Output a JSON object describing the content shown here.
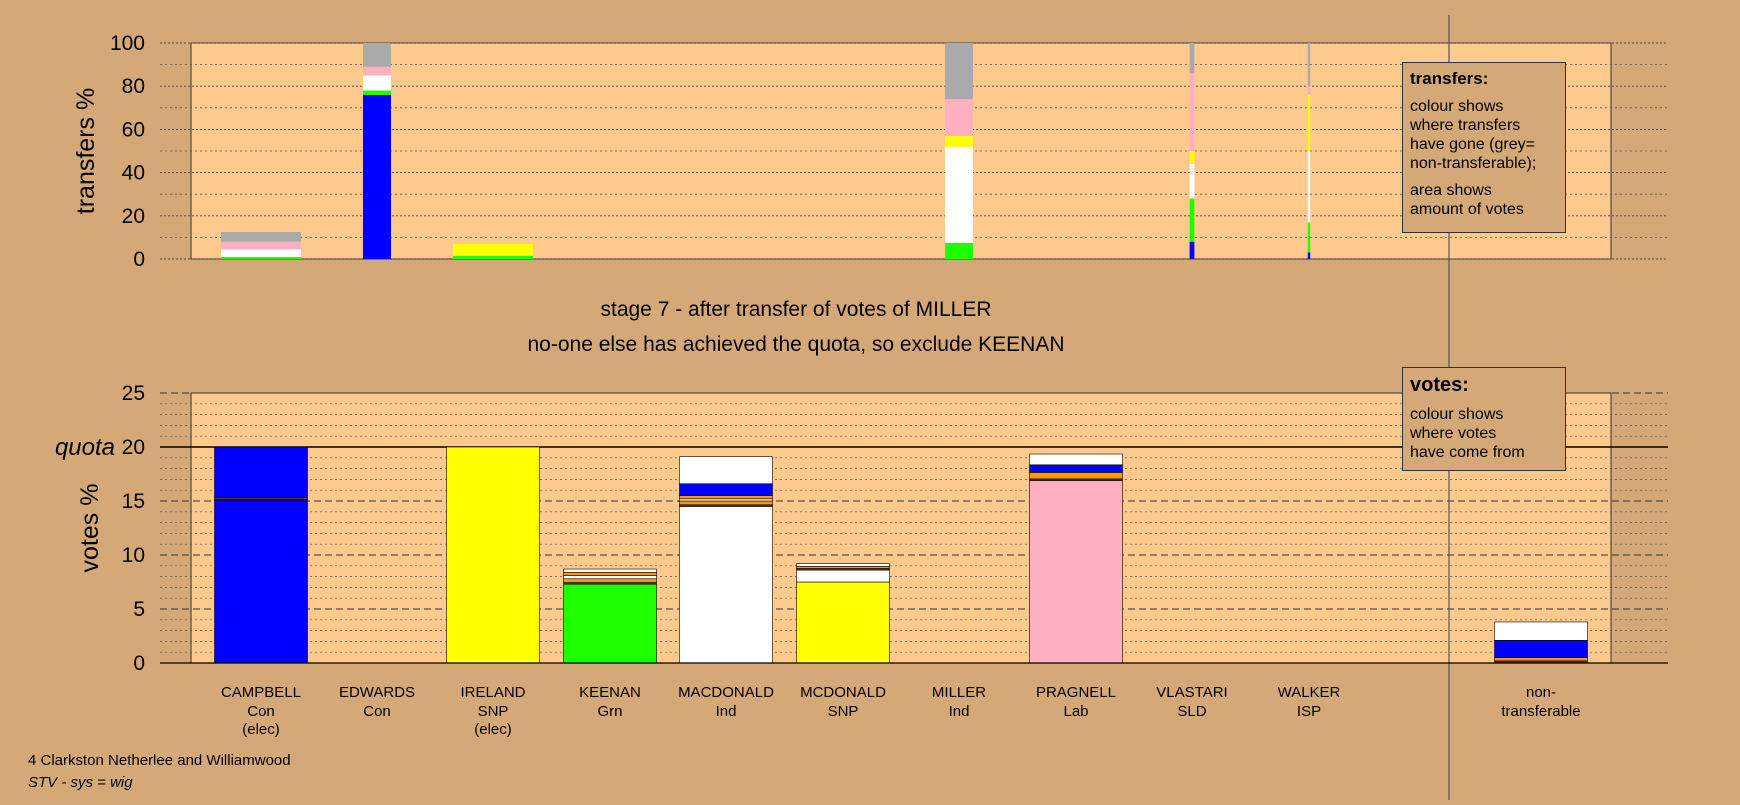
{
  "colors": {
    "page_bg": "#d4a877",
    "plot_bg": "#fec98d",
    "Con": "#0000ff",
    "SNP": "#ffff00",
    "Grn": "#1eff00",
    "Ind": "#ffffff",
    "Lab": "#ffb0c0",
    "SLD": "#ff9900",
    "ISP": "#7a2a00",
    "nontransferable": "#aaaaaa"
  },
  "headline": {
    "line1": "stage 7 - after transfer of votes of MILLER",
    "line2": "no-one else has achieved the quota, so exclude KEENAN"
  },
  "legend_transfers": {
    "title": "transfers:",
    "line1": "colour shows\nwhere transfers\nhave gone (grey=\nnon-transferable);",
    "line2": "area shows\namount of votes"
  },
  "legend_votes": {
    "title": "votes:",
    "line1": "colour shows\nwhere votes\nhave come from"
  },
  "footer": {
    "line1": "4 Clarkston Netherlee and Williamwood",
    "line2": "STV - sys = wig"
  },
  "chart_data": [
    {
      "type": "bar",
      "name": "transfers",
      "ylabel": "transfers %",
      "ylim": [
        0,
        100
      ],
      "yticks": [
        0,
        20,
        40,
        60,
        80,
        100
      ],
      "categories": [
        "CAMPBELL",
        "EDWARDS",
        "IRELAND",
        "KEENAN",
        "MACDONALD",
        "MCDONALD",
        "MILLER",
        "PRAGNELL",
        "VLASTARI",
        "WALKER"
      ],
      "bar_widths": [
        1.0,
        0.35,
        1.0,
        0,
        0,
        0,
        0.35,
        0,
        0.06,
        0.03
      ],
      "stacks": [
        [
          [
            "Grn",
            1
          ],
          [
            "Ind",
            3.5
          ],
          [
            "Lab",
            3.5
          ],
          [
            "nontransferable",
            4.5
          ]
        ],
        [
          [
            "Con",
            76
          ],
          [
            "Grn",
            2
          ],
          [
            "Ind",
            7
          ],
          [
            "Lab",
            4
          ],
          [
            "nontransferable",
            11
          ]
        ],
        [
          [
            "Grn",
            1.5
          ],
          [
            "SNP",
            5.5
          ]
        ],
        [],
        [],
        [],
        [
          [
            "Grn",
            7.5
          ],
          [
            "Ind",
            44.5
          ],
          [
            "SNP",
            5
          ],
          [
            "Lab",
            17
          ],
          [
            "nontransferable",
            26
          ]
        ],
        [],
        [
          [
            "Con",
            8
          ],
          [
            "Grn",
            20
          ],
          [
            "Ind",
            16
          ],
          [
            "SNP",
            6
          ],
          [
            "Lab",
            36
          ],
          [
            "nontransferable",
            14
          ]
        ],
        [
          [
            "Con",
            3
          ],
          [
            "Grn",
            14
          ],
          [
            "Ind",
            33
          ],
          [
            "SNP",
            26
          ],
          [
            "Lab",
            4
          ],
          [
            "nontransferable",
            20
          ]
        ]
      ]
    },
    {
      "type": "bar",
      "name": "votes",
      "ylabel": "votes %",
      "ylim": [
        0,
        25
      ],
      "yticks": [
        0,
        5,
        10,
        15,
        20,
        25
      ],
      "quota": 20,
      "quota_label": "quota",
      "categories": [
        {
          "name": "CAMPBELL",
          "party": "Con",
          "note": "(elec)"
        },
        {
          "name": "EDWARDS",
          "party": "Con",
          "note": ""
        },
        {
          "name": "IRELAND",
          "party": "SNP",
          "note": "(elec)"
        },
        {
          "name": "KEENAN",
          "party": "Grn",
          "note": ""
        },
        {
          "name": "MACDONALD",
          "party": "Ind",
          "note": ""
        },
        {
          "name": "MCDONALD",
          "party": "SNP",
          "note": ""
        },
        {
          "name": "MILLER",
          "party": "Ind",
          "note": ""
        },
        {
          "name": "PRAGNELL",
          "party": "Lab",
          "note": ""
        },
        {
          "name": "VLASTARI",
          "party": "SLD",
          "note": ""
        },
        {
          "name": "WALKER",
          "party": "ISP",
          "note": ""
        },
        {
          "name": "non-",
          "party": "transferable",
          "note": ""
        }
      ],
      "stacks": [
        [
          [
            "Con",
            15.1
          ],
          [
            "ISP",
            0.1
          ],
          [
            "SLD",
            0.1
          ],
          [
            "Con",
            4.7
          ]
        ],
        [],
        [
          [
            "SNP",
            20
          ]
        ],
        [
          [
            "Grn",
            7.3
          ],
          [
            "ISP",
            0.15
          ],
          [
            "SLD",
            0.35
          ],
          [
            "Ind",
            0.3
          ],
          [
            "SLD",
            0.3
          ],
          [
            "Ind",
            0.3
          ]
        ],
        [
          [
            "Ind",
            14.5
          ],
          [
            "ISP",
            0.15
          ],
          [
            "SLD",
            0.35
          ],
          [
            "Ind",
            0.2
          ],
          [
            "SLD",
            0.3
          ],
          [
            "Con",
            1.1
          ],
          [
            "Ind",
            2.5
          ]
        ],
        [],
        [],
        [
          [
            "Lab",
            16.9
          ],
          [
            "ISP",
            0.15
          ],
          [
            "SLD",
            0.6
          ],
          [
            "Con",
            0.7
          ],
          [
            "Ind",
            1.0
          ]
        ],
        [],
        [],
        [
          [
            "ISP",
            0.2
          ],
          [
            "SLD",
            0.3
          ],
          [
            "Con",
            1.6
          ],
          [
            "Ind",
            1.7
          ]
        ]
      ],
      "stacks_mcdonald": [
        [
          "SNP",
          7.5
        ],
        [
          "Ind",
          1.1
        ],
        [
          "ISP",
          0.15
        ],
        [
          "SLD",
          0.2
        ],
        [
          "Ind",
          0.25
        ]
      ]
    }
  ]
}
